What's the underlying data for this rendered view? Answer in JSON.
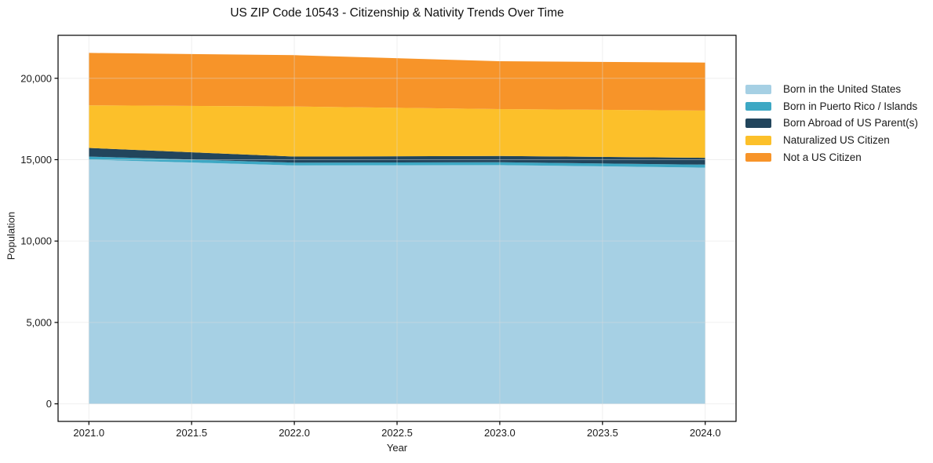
{
  "title": "US ZIP Code 10543 - Citizenship & Nativity Trends Over Time",
  "chart_data": {
    "type": "area",
    "stacked": true,
    "title": "US ZIP Code 10543 - Citizenship & Nativity Trends Over Time",
    "xlabel": "Year",
    "ylabel": "Population",
    "x": [
      2021,
      2022,
      2023,
      2024
    ],
    "series": [
      {
        "name": "Born in the United States",
        "color": "#a6d0e4",
        "values": [
          15000,
          14650,
          14670,
          14510
        ]
      },
      {
        "name": "Born in Puerto Rico / Islands",
        "color": "#3da8c4",
        "values": [
          190,
          170,
          170,
          185
        ]
      },
      {
        "name": "Born Abroad of US Parent(s)",
        "color": "#22455c",
        "values": [
          530,
          370,
          390,
          420
        ]
      },
      {
        "name": "Naturalized US Citizen",
        "color": "#fcc02a",
        "values": [
          2620,
          3080,
          2880,
          2900
        ]
      },
      {
        "name": "Not a US Citizen",
        "color": "#f79429",
        "values": [
          3220,
          3150,
          2940,
          2950
        ]
      }
    ],
    "totals": [
      21560,
      21420,
      21050,
      20965
    ],
    "xtick_values": [
      2021.0,
      2021.5,
      2022.0,
      2022.5,
      2023.0,
      2023.5,
      2024.0
    ],
    "xtick_labels": [
      "2021.0",
      "2021.5",
      "2022.0",
      "2022.5",
      "2023.0",
      "2023.5",
      "2024.0"
    ],
    "ytick_values": [
      0,
      5000,
      10000,
      15000,
      20000
    ],
    "ytick_labels": [
      "0",
      "5,000",
      "10,000",
      "15,000",
      "20,000"
    ],
    "xlim": [
      2020.85,
      2024.15
    ],
    "ylim": [
      -1080,
      22640
    ],
    "grid": true,
    "grid_color": "#dcdcdc",
    "spine_color": "#000000",
    "legend_position": "right-outside"
  }
}
